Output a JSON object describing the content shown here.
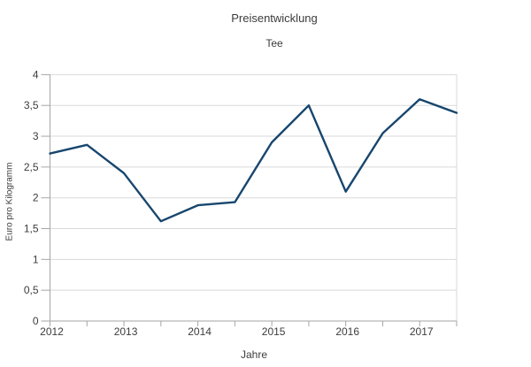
{
  "chart_data": {
    "type": "line",
    "title": "Preisentwicklung",
    "subtitle": "Tee",
    "xlabel": "Jahre",
    "ylabel": "Euro pro Kilogramm",
    "x": [
      2012,
      2012.5,
      2013,
      2013.5,
      2014,
      2014.5,
      2015,
      2015.5,
      2016,
      2016.5,
      2017,
      2017.5
    ],
    "series": [
      {
        "name": "Tee",
        "values": [
          2.72,
          2.86,
          2.4,
          1.62,
          1.88,
          1.93,
          2.9,
          3.5,
          2.1,
          3.05,
          3.6,
          3.38
        ]
      }
    ],
    "ylim": [
      0,
      4
    ],
    "ytick_step": 0.5,
    "y_tick_labels": [
      "0",
      "0,5",
      "1",
      "1,5",
      "2",
      "2,5",
      "3",
      "3,5",
      "4"
    ],
    "x_tick_labels": [
      "2012",
      "2013",
      "2014",
      "2015",
      "2016",
      "2017"
    ],
    "grid": "horizontal",
    "legend": "none",
    "colors": {
      "line": "#17466e",
      "grid": "#d9d9d9",
      "axis": "#a6a6a6",
      "text": "#3c3c3c",
      "background": "#ffffff"
    }
  }
}
